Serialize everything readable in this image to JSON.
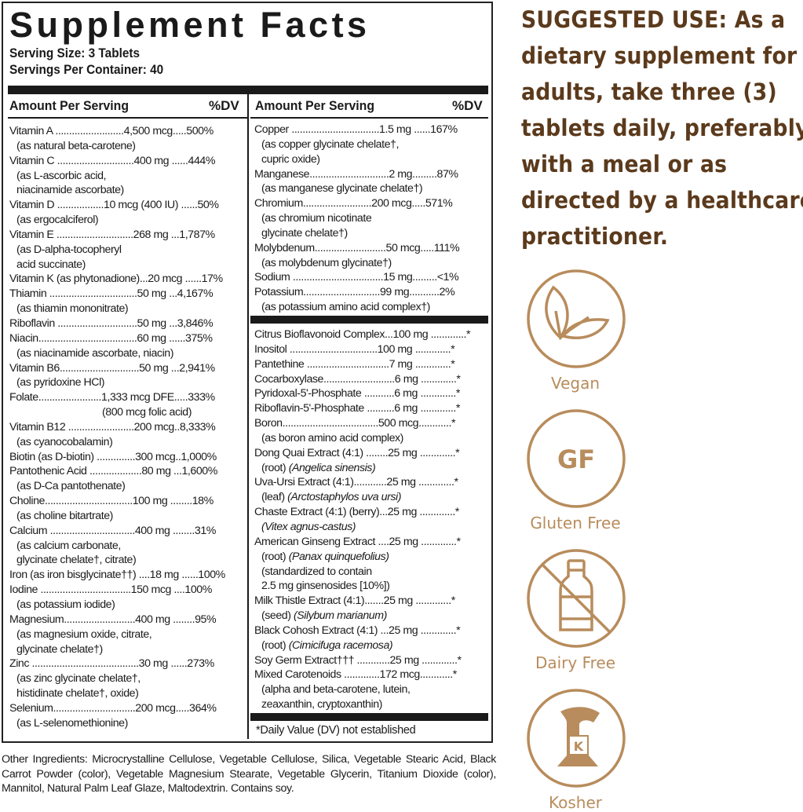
{
  "label": {
    "title": "Supplement Facts",
    "serving_size": "Serving Size: 3 Tablets",
    "servings_per_container": "Servings Per Container: 40",
    "header_amount": "Amount Per Serving",
    "header_dv": "%DV",
    "left_lines": [
      [
        "Vitamin A .........................4,500 mcg.....500%",
        0
      ],
      [
        "(as natural beta-carotene)",
        1
      ],
      [
        "Vitamin C ............................400 mg ......444%",
        0
      ],
      [
        "(as L-ascorbic acid,",
        1
      ],
      [
        "niacinamide ascorbate)",
        1
      ],
      [
        "Vitamin D .................10 mcg (400 IU) ......50%",
        0
      ],
      [
        "(as ergocalciferol)",
        1
      ],
      [
        "Vitamin E ............................268 mg ...1,787%",
        0
      ],
      [
        "(as D-alpha-tocopheryl",
        1
      ],
      [
        "acid succinate)",
        1
      ],
      [
        "Vitamin K (as phytonadione)...20 mcg ......17%",
        0
      ],
      [
        "Thiamin ................................50 mg ...4,167%",
        0
      ],
      [
        "(as thiamin mononitrate)",
        1
      ],
      [
        "Riboflavin  .............................50 mg ...3,846%",
        0
      ],
      [
        "Niacin....................................60 mg ......375%",
        0
      ],
      [
        "(as niacinamide ascorbate, niacin)",
        1
      ],
      [
        "Vitamin B6.............................50 mg ...2,941%",
        0
      ],
      [
        "(as pyridoxine HCl)",
        1
      ],
      [
        "Folate.......................1,333 mcg DFE.....333%",
        0
      ],
      [
        "(800 mcg folic acid)",
        2
      ],
      [
        "Vitamin B12 ........................200 mcg..8,333%",
        0
      ],
      [
        "(as cyanocobalamin)",
        1
      ],
      [
        "Biotin (as D-biotin) ..............300 mcg..1,000%",
        0
      ],
      [
        "Pantothenic Acid ...................80 mg ...1,600%",
        0
      ],
      [
        "(as D-Ca pantothenate)",
        1
      ],
      [
        "Choline................................100 mg ........18%",
        0
      ],
      [
        "(as choline bitartrate)",
        1
      ],
      [
        "Calcium ...............................400 mg ........31%",
        0
      ],
      [
        "(as calcium carbonate,",
        1
      ],
      [
        "glycinate chelate†, citrate)",
        1
      ],
      [
        "Iron (as iron bisglycinate††) ....18 mg ......100%",
        0
      ],
      [
        "Iodine .................................150 mcg ....100%",
        0
      ],
      [
        "(as potassium iodide)",
        1
      ],
      [
        "Magnesium..........................400 mg ........95%",
        0
      ],
      [
        "(as magnesium oxide, citrate,",
        1
      ],
      [
        "glycinate chelate†)",
        1
      ],
      [
        "Zinc .......................................30 mg ......273%",
        0
      ],
      [
        "(as zinc glycinate chelate†,",
        1
      ],
      [
        "histidinate chelate†, oxide)",
        1
      ],
      [
        "Selenium..............................200 mcg.....364%",
        0
      ],
      [
        "(as L-selenomethionine)",
        1
      ]
    ],
    "right_lines_top": [
      [
        "Copper ................................1.5 mg ......167%",
        0
      ],
      [
        "(as copper glycinate chelate†,",
        1
      ],
      [
        "cupric oxide)",
        1
      ],
      [
        "Manganese.............................2 mg.........87%",
        0
      ],
      [
        "(as manganese glycinate chelate†)",
        1
      ],
      [
        "Chromium.........................200 mcg.....571%",
        0
      ],
      [
        "(as chromium nicotinate",
        1
      ],
      [
        "glycinate chelate†)",
        1
      ],
      [
        "Molybdenum..........................50 mcg.....111%",
        0
      ],
      [
        "(as molybdenum glycinate†)",
        1
      ],
      [
        "Sodium .................................15 mg.........<1%",
        0
      ],
      [
        "Potassium............................99 mg...........2%",
        0
      ],
      [
        "(as potassium amino acid complex†)",
        1
      ]
    ],
    "right_lines_bottom": [
      [
        "Citrus Bioflavonoid Complex...100 mg .............*",
        0
      ],
      [
        "Inositol ................................100 mg .............*",
        0
      ],
      [
        "Pantethine ..............................7 mg .............*",
        0
      ],
      [
        "Cocarboxylase..........................6 mg .............*",
        0
      ],
      [
        "Pyridoxal-5'-Phosphate ...........6 mg .............*",
        0
      ],
      [
        "Riboflavin-5'-Phosphate ..........6 mg .............*",
        0
      ],
      [
        "Boron...................................500 mcg............*",
        0
      ],
      [
        "(as boron amino acid complex)",
        1
      ],
      [
        "Dong Quai Extract (4:1) ........25 mg .............*",
        0
      ],
      [
        "(root) |Angelica sinensis",
        1
      ],
      [
        "Uva-Ursi Extract (4:1)............25 mg .............*",
        0
      ],
      [
        "(leaf) |Arctostaphylos uva ursi",
        1
      ],
      [
        "Chaste Extract (4:1) (berry)...25 mg .............*",
        0
      ],
      [
        "|Vitex agnus-castus",
        1
      ],
      [
        "American Ginseng Extract ....25 mg .............*",
        0
      ],
      [
        "(root) |Panax quinquefolius",
        1
      ],
      [
        "(standardized to contain",
        1
      ],
      [
        "2.5 mg ginsenosides [10%])",
        1
      ],
      [
        "Milk Thistle Extract (4:1).......25 mg .............*",
        0
      ],
      [
        "(seed) |Silybum marianum",
        1
      ],
      [
        "Black Cohosh Extract (4:1) ...25 mg .............*",
        0
      ],
      [
        "(root) |Cimicifuga racemosa",
        1
      ],
      [
        "Soy Germ Extract††† ............25 mg .............*",
        0
      ],
      [
        "Mixed Carotenoids .............172 mcg............*",
        0
      ],
      [
        "(alpha and beta-carotene, lutein,",
        1
      ],
      [
        "zeaxanthin, cryptoxanthin)",
        1
      ]
    ],
    "footnote": "*Daily Value (DV) not established"
  },
  "other_ingredients": "Other Ingredients: Microcrystalline Cellulose, Vegetable Cellulose, Silica, Vegetable Stearic Acid, Black Carrot Powder (color), Vegetable Magnesium Stearate, Vegetable Glycerin, Titanium Dioxide (color), Mannitol, Natural Palm Leaf Glaze, Maltodextrin. Contains soy.",
  "suggested_use_lines": [
    "SUGGESTED USE: As a",
    "dietary supplement for",
    "adults, take three (3)",
    "tablets daily, preferably",
    "with a meal or as",
    "directed by a healthcare",
    "practitioner."
  ],
  "badges": [
    {
      "label": "Vegan",
      "icon": "leaf-icon"
    },
    {
      "label": "Gluten Free",
      "icon": "gf-icon",
      "icon_text": "GF"
    },
    {
      "label": "Dairy Free",
      "icon": "crossed-milk-bottle-icon"
    },
    {
      "label": "Kosher",
      "icon": "kosher-k-icon",
      "icon_text": "K"
    }
  ],
  "colors": {
    "suggested_text": "#5b3a1c",
    "badge": "#b88c5c",
    "label_ink": "#1a1a1a"
  }
}
